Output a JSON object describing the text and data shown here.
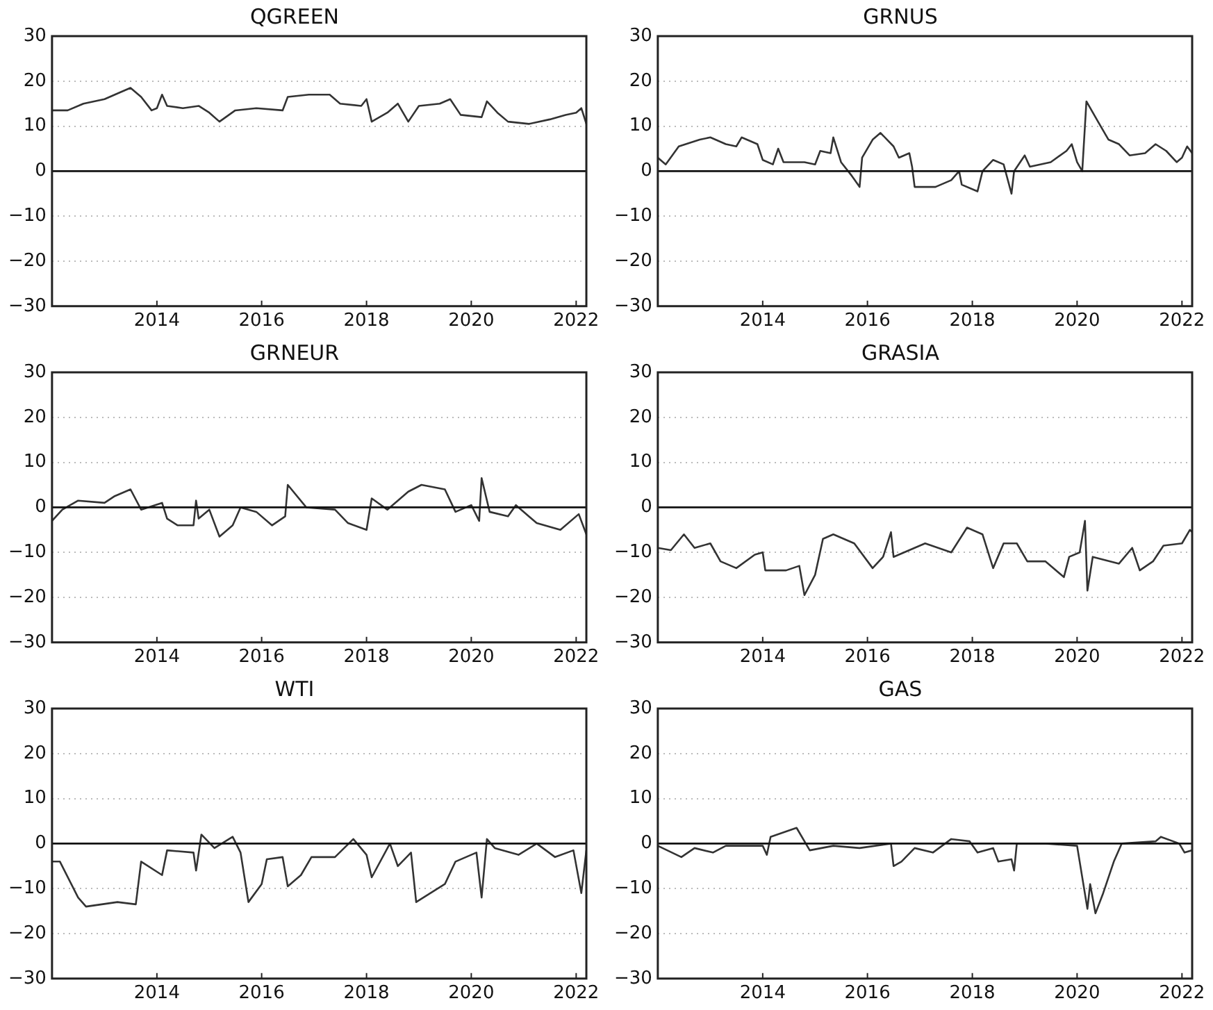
{
  "chart_data": [
    {
      "type": "line",
      "title": "QGREEN",
      "marker": "none",
      "legend": false,
      "grid": "y",
      "xlim": [
        "2012-01-01",
        "2022-03-13"
      ],
      "xticks": [
        "2014",
        "2016",
        "2018",
        "2020",
        "2022"
      ],
      "ylim": [
        -30,
        30
      ],
      "yticks": [
        -30,
        -20,
        -10,
        0,
        10,
        20,
        30
      ],
      "ref_lines": [
        {
          "axis": "y",
          "value": 0
        }
      ],
      "series": [
        {
          "color": "#333333",
          "x": [
            "2012-01-01",
            "2012-04-19",
            "2012-08-07",
            "2013-01-01",
            "2013-04-19",
            "2013-07-01",
            "2013-09-13",
            "2013-11-25",
            "2014-01-01",
            "2014-02-06",
            "2014-03-13",
            "2014-07-01",
            "2014-10-19",
            "2015-01-01",
            "2015-03-13",
            "2015-07-01",
            "2015-11-25",
            "2016-05-26",
            "2016-07-01",
            "2016-11-25",
            "2017-04-19",
            "2017-07-01",
            "2017-11-25",
            "2018-01-01",
            "2018-02-06",
            "2018-05-26",
            "2018-08-07",
            "2018-10-19",
            "2019-01-01",
            "2019-05-26",
            "2019-08-07",
            "2019-10-19",
            "2020-03-13",
            "2020-04-19",
            "2020-07-01",
            "2020-09-13",
            "2021-02-06",
            "2021-07-01",
            "2021-10-19",
            "2022-01-01",
            "2022-02-06",
            "2022-03-13"
          ],
          "values": [
            13.5,
            13.5,
            15,
            16,
            17.5,
            18.5,
            16.5,
            13.5,
            14,
            17,
            14.5,
            14,
            14.5,
            13,
            11,
            13.5,
            14,
            13.5,
            16.5,
            17,
            17,
            15,
            14.5,
            16,
            11,
            13,
            15,
            11,
            14.5,
            15,
            16,
            12.5,
            12,
            15.5,
            13,
            11,
            10.5,
            11.5,
            12.5,
            13,
            14,
            10.5
          ]
        }
      ]
    },
    {
      "type": "line",
      "title": "GRNUS",
      "marker": "none",
      "legend": false,
      "grid": "y",
      "xlim": [
        "2012-01-01",
        "2022-03-13"
      ],
      "xticks": [
        "2014",
        "2016",
        "2018",
        "2020",
        "2022"
      ],
      "ylim": [
        -30,
        30
      ],
      "yticks": [
        -30,
        -20,
        -10,
        0,
        10,
        20,
        30
      ],
      "ref_lines": [
        {
          "axis": "y",
          "value": 0
        }
      ],
      "series": [
        {
          "color": "#333333",
          "x": [
            "2012-01-01",
            "2012-02-25",
            "2012-05-26",
            "2012-10-19",
            "2013-01-01",
            "2013-04-19",
            "2013-07-01",
            "2013-08-07",
            "2013-11-25",
            "2014-01-01",
            "2014-03-13",
            "2014-04-19",
            "2014-05-26",
            "2014-10-19",
            "2015-01-01",
            "2015-02-06",
            "2015-04-19",
            "2015-05-08",
            "2015-07-01",
            "2015-09-13",
            "2015-11-07",
            "2015-11-25",
            "2016-02-06",
            "2016-04-01",
            "2016-07-01",
            "2016-08-07",
            "2016-10-19",
            "2016-11-07",
            "2016-11-25",
            "2017-04-19",
            "2017-08-07",
            "2017-10-01",
            "2017-10-19",
            "2018-02-06",
            "2018-03-13",
            "2018-05-26",
            "2018-08-07",
            "2018-10-01",
            "2018-10-19",
            "2019-01-01",
            "2019-02-06",
            "2019-07-01",
            "2019-10-19",
            "2019-11-25",
            "2020-01-01",
            "2020-02-06",
            "2020-03-06",
            "2020-05-26",
            "2020-08-07",
            "2020-10-19",
            "2021-01-01",
            "2021-04-19",
            "2021-07-01",
            "2021-09-13",
            "2021-11-25",
            "2022-01-01",
            "2022-02-06",
            "2022-03-13"
          ],
          "values": [
            3,
            1.5,
            5.5,
            7,
            7.5,
            6,
            5.5,
            7.5,
            6,
            2.5,
            1.5,
            5,
            2,
            2,
            1.5,
            4.5,
            4,
            7.5,
            2,
            -1,
            -3.5,
            3,
            7,
            8.5,
            5.5,
            3,
            4,
            1,
            -3.5,
            -3.5,
            -2,
            0,
            -3,
            -4.5,
            0,
            2.5,
            1.5,
            -5,
            0,
            3.5,
            1,
            2,
            4.5,
            6,
            2,
            0,
            15.5,
            11,
            7,
            6,
            3.5,
            4,
            6,
            4.5,
            2,
            3,
            5.5,
            4
          ]
        }
      ]
    },
    {
      "type": "line",
      "title": "GRNEUR",
      "marker": "none",
      "legend": false,
      "grid": "y",
      "xlim": [
        "2012-01-01",
        "2022-03-13"
      ],
      "xticks": [
        "2014",
        "2016",
        "2018",
        "2020",
        "2022"
      ],
      "ylim": [
        -30,
        30
      ],
      "yticks": [
        -30,
        -20,
        -10,
        0,
        10,
        20,
        30
      ],
      "ref_lines": [
        {
          "axis": "y",
          "value": 0
        }
      ],
      "series": [
        {
          "color": "#333333",
          "x": [
            "2012-01-01",
            "2012-03-13",
            "2012-07-01",
            "2013-01-01",
            "2013-03-13",
            "2013-07-01",
            "2013-09-13",
            "2014-02-06",
            "2014-03-13",
            "2014-05-26",
            "2014-09-13",
            "2014-10-01",
            "2014-10-19",
            "2015-01-01",
            "2015-03-13",
            "2015-06-13",
            "2015-08-07",
            "2015-11-25",
            "2016-03-13",
            "2016-06-13",
            "2016-07-01",
            "2016-11-07",
            "2017-05-26",
            "2017-08-25",
            "2018-01-01",
            "2018-02-06",
            "2018-05-26",
            "2018-10-19",
            "2019-01-19",
            "2019-07-01",
            "2019-09-13",
            "2020-01-01",
            "2020-02-25",
            "2020-03-13",
            "2020-05-08",
            "2020-09-13",
            "2020-11-07",
            "2021-04-01",
            "2021-09-13",
            "2022-01-19",
            "2022-03-13"
          ],
          "values": [
            -3,
            -0.5,
            1.5,
            1,
            2.5,
            4,
            -0.5,
            1,
            -2.5,
            -4,
            -4,
            1.5,
            -2.5,
            -0.5,
            -6.5,
            -4,
            0,
            -1,
            -4,
            -2,
            5,
            0,
            -0.5,
            -3.5,
            -5,
            2,
            -0.5,
            3.5,
            5,
            4,
            -1,
            0.5,
            -3,
            6.5,
            -1,
            -2,
            0.5,
            -3.5,
            -5,
            -1.5,
            -6
          ]
        }
      ]
    },
    {
      "type": "line",
      "title": "GRASIA",
      "marker": "none",
      "legend": false,
      "grid": "y",
      "xlim": [
        "2012-01-01",
        "2022-03-13"
      ],
      "xticks": [
        "2014",
        "2016",
        "2018",
        "2020",
        "2022"
      ],
      "ylim": [
        -30,
        30
      ],
      "yticks": [
        -30,
        -20,
        -10,
        0,
        10,
        20,
        30
      ],
      "ref_lines": [
        {
          "axis": "y",
          "value": 0
        }
      ],
      "series": [
        {
          "color": "#333333",
          "x": [
            "2012-01-01",
            "2012-04-01",
            "2012-07-01",
            "2012-09-13",
            "2013-01-01",
            "2013-03-13",
            "2013-07-01",
            "2013-11-07",
            "2014-01-01",
            "2014-01-19",
            "2014-06-13",
            "2014-09-13",
            "2014-10-19",
            "2015-01-01",
            "2015-02-25",
            "2015-05-08",
            "2015-10-01",
            "2016-02-06",
            "2016-04-19",
            "2016-06-13",
            "2016-07-01",
            "2017-02-06",
            "2017-08-07",
            "2017-11-25",
            "2018-03-13",
            "2018-05-26",
            "2018-08-07",
            "2018-11-07",
            "2019-01-19",
            "2019-05-26",
            "2019-10-01",
            "2019-11-07",
            "2020-01-19",
            "2020-02-25",
            "2020-03-13",
            "2020-04-19",
            "2020-10-19",
            "2021-01-19",
            "2021-03-13",
            "2021-06-13",
            "2021-08-25",
            "2022-01-01",
            "2022-02-25",
            "2022-03-13"
          ],
          "values": [
            -9,
            -9.5,
            -6,
            -9,
            -8,
            -12,
            -13.5,
            -10.5,
            -10,
            -14,
            -14,
            -13,
            -19.5,
            -15,
            -7,
            -6,
            -8,
            -13.5,
            -11,
            -5.5,
            -11,
            -8,
            -10,
            -4.5,
            -6,
            -13.5,
            -8,
            -8,
            -12,
            -12,
            -15.5,
            -11,
            -10,
            -3,
            -18.5,
            -11,
            -12.5,
            -9,
            -14,
            -12,
            -8.5,
            -8,
            -5,
            -5.5
          ]
        }
      ]
    },
    {
      "type": "line",
      "title": "WTI",
      "marker": "none",
      "legend": false,
      "grid": "y",
      "xlim": [
        "2012-01-01",
        "2022-03-13"
      ],
      "xticks": [
        "2014",
        "2016",
        "2018",
        "2020",
        "2022"
      ],
      "ylim": [
        -30,
        30
      ],
      "yticks": [
        -30,
        -20,
        -10,
        0,
        10,
        20,
        30
      ],
      "ref_lines": [
        {
          "axis": "y",
          "value": 0
        }
      ],
      "series": [
        {
          "color": "#333333",
          "x": [
            "2012-01-01",
            "2012-02-25",
            "2012-07-01",
            "2012-08-25",
            "2013-04-01",
            "2013-08-07",
            "2013-09-13",
            "2014-02-06",
            "2014-03-13",
            "2014-09-13",
            "2014-10-01",
            "2014-11-07",
            "2015-02-06",
            "2015-06-13",
            "2015-08-07",
            "2015-10-01",
            "2016-01-01",
            "2016-02-06",
            "2016-05-26",
            "2016-07-01",
            "2016-10-01",
            "2016-12-13",
            "2017-05-26",
            "2017-10-01",
            "2018-01-01",
            "2018-02-06",
            "2018-06-13",
            "2018-08-07",
            "2018-11-07",
            "2018-12-13",
            "2019-07-01",
            "2019-09-13",
            "2020-02-06",
            "2020-03-13",
            "2020-04-19",
            "2020-06-13",
            "2020-11-25",
            "2021-04-01",
            "2021-08-07",
            "2021-12-13",
            "2022-02-06",
            "2022-03-13"
          ],
          "values": [
            -4,
            -4,
            -12,
            -14,
            -13,
            -13.5,
            -4,
            -7,
            -1.5,
            -2,
            -6,
            2,
            -1,
            1.5,
            -2,
            -13,
            -9,
            -3.5,
            -3,
            -9.5,
            -7,
            -3,
            -3,
            1,
            -2.5,
            -7.5,
            0,
            -5,
            -2,
            -13,
            -9,
            -4,
            -2,
            -12,
            1,
            -1,
            -2.5,
            0,
            -3,
            -1.5,
            -11,
            -1.5
          ]
        }
      ]
    },
    {
      "type": "line",
      "title": "GAS",
      "marker": "none",
      "legend": false,
      "grid": "y",
      "xlim": [
        "2012-01-01",
        "2022-03-13"
      ],
      "xticks": [
        "2014",
        "2016",
        "2018",
        "2020",
        "2022"
      ],
      "ylim": [
        -30,
        30
      ],
      "yticks": [
        -30,
        -20,
        -10,
        0,
        10,
        20,
        30
      ],
      "ref_lines": [
        {
          "axis": "y",
          "value": 0
        }
      ],
      "series": [
        {
          "color": "#333333",
          "x": [
            "2012-01-01",
            "2012-06-13",
            "2012-09-13",
            "2013-01-19",
            "2013-04-19",
            "2014-01-01",
            "2014-01-30",
            "2014-02-25",
            "2014-08-25",
            "2014-11-25",
            "2015-05-08",
            "2015-11-07",
            "2016-06-13",
            "2016-07-01",
            "2016-08-25",
            "2016-11-25",
            "2017-04-01",
            "2017-08-07",
            "2017-12-13",
            "2018-02-06",
            "2018-05-26",
            "2018-07-01",
            "2018-10-01",
            "2018-10-19",
            "2018-11-07",
            "2019-05-26",
            "2020-01-01",
            "2020-03-13",
            "2020-04-01",
            "2020-05-08",
            "2020-07-01",
            "2020-09-13",
            "2020-11-07",
            "2021-07-01",
            "2021-08-07",
            "2021-12-13",
            "2022-01-19",
            "2022-03-13"
          ],
          "values": [
            -0.5,
            -3,
            -1,
            -2,
            -0.5,
            -0.5,
            -2.5,
            1.5,
            3.5,
            -1.5,
            -0.5,
            -1,
            0,
            -5,
            -4,
            -1,
            -2,
            1,
            0.5,
            -2,
            -1,
            -4,
            -3.5,
            -6,
            0,
            0,
            -0.5,
            -14.5,
            -9,
            -15.5,
            -11,
            -4,
            0,
            0.5,
            1.5,
            0,
            -2,
            -1.5
          ]
        }
      ]
    }
  ]
}
